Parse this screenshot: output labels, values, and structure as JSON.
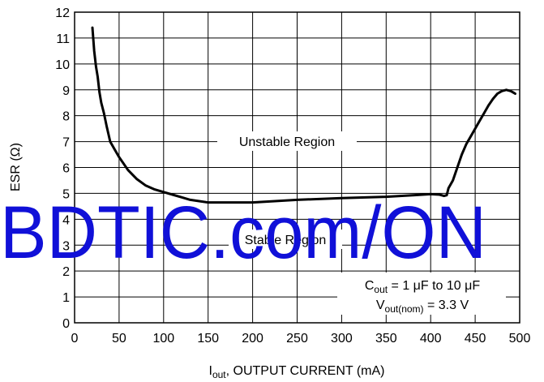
{
  "chart_data": {
    "type": "line",
    "title": "",
    "xlabel_main": "I",
    "xlabel_sub": "out",
    "xlabel_rest": ", OUTPUT CURRENT (mA)",
    "ylabel": "ESR (Ω)",
    "xlim": [
      0,
      500
    ],
    "ylim": [
      0,
      12
    ],
    "x_ticks": [
      "0",
      "50",
      "100",
      "150",
      "200",
      "250",
      "300",
      "350",
      "400",
      "450",
      "500"
    ],
    "y_ticks": [
      "0",
      "1",
      "2",
      "3",
      "4",
      "5",
      "6",
      "7",
      "8",
      "9",
      "10",
      "11",
      "12"
    ],
    "grid": true,
    "series": [
      {
        "x": [
          20,
          22,
          24,
          26,
          28,
          30,
          33,
          36,
          40,
          45,
          50,
          60,
          70,
          80,
          90,
          100,
          110,
          120,
          130,
          140,
          150,
          175,
          200,
          250,
          300,
          350,
          380,
          400,
          410,
          415,
          418,
          420,
          425,
          430,
          435,
          440,
          445,
          450,
          455,
          460,
          465,
          470,
          475,
          480,
          485,
          490,
          495
        ],
        "y": [
          11.4,
          10.5,
          9.9,
          9.5,
          8.9,
          8.5,
          8.1,
          7.6,
          7.0,
          6.7,
          6.4,
          5.9,
          5.55,
          5.3,
          5.15,
          5.05,
          4.95,
          4.85,
          4.75,
          4.7,
          4.65,
          4.65,
          4.65,
          4.75,
          4.82,
          4.87,
          4.93,
          4.97,
          4.95,
          4.9,
          4.93,
          5.2,
          5.5,
          6.0,
          6.5,
          6.9,
          7.2,
          7.5,
          7.8,
          8.1,
          8.4,
          8.65,
          8.85,
          8.95,
          9.0,
          8.95,
          8.85
        ]
      }
    ],
    "annotations": {
      "unstable": "Unstable Region",
      "stable": "Stable Region",
      "cond1_main": "C",
      "cond1_sub": "out",
      "cond1_rest": " = 1 μF to 10 μF",
      "cond2_main": "V",
      "cond2_sub": "out(nom)",
      "cond2_rest": " = 3.3 V"
    },
    "watermark": "BDTIC.com/ON"
  }
}
